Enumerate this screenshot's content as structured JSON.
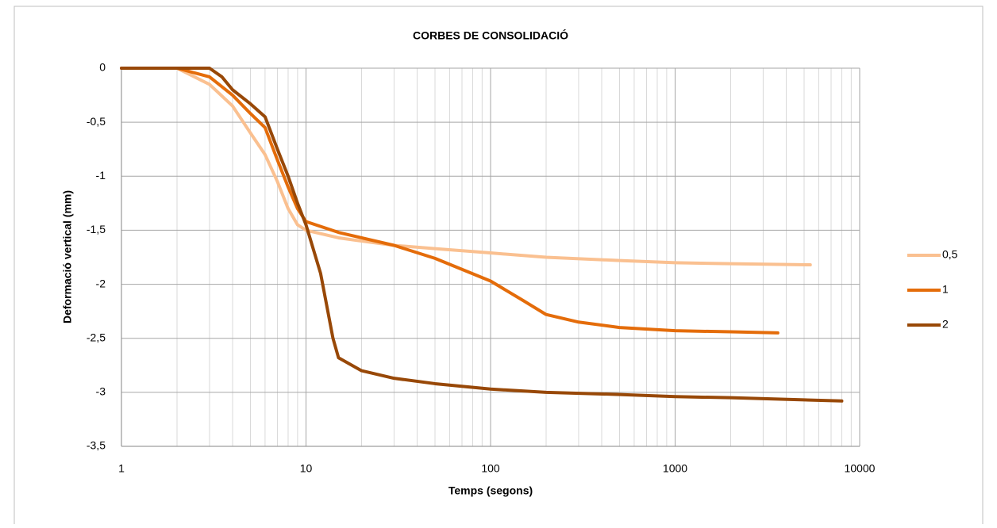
{
  "chart_data": {
    "type": "line",
    "title": "CORBES  DE  CONSOLIDACIÓ",
    "x_label": "Temps (segons)",
    "y_label": "Deformació vertical (mm)",
    "xscale": "log",
    "xlim": [
      1,
      10000
    ],
    "xticks": [
      1,
      10,
      100,
      1000,
      10000
    ],
    "ylim": [
      -3.5,
      0
    ],
    "yticks": [
      {
        "value": -3.5,
        "label": "-3,5"
      },
      -3,
      {
        "value": -2.5,
        "label": "-2,5"
      },
      -2,
      {
        "value": -1.5,
        "label": "-1,5"
      },
      -1,
      {
        "value": -0.5,
        "label": "-0,5"
      },
      0
    ],
    "grid": true,
    "minor_grid": true,
    "legend": "right",
    "series": [
      {
        "name": "0,5",
        "color": "#fac090",
        "x": [
          1,
          2,
          3,
          4,
          5,
          6,
          7,
          8,
          9,
          10,
          15,
          20,
          30,
          50,
          100,
          200,
          500,
          1000,
          2000,
          5400
        ],
        "values": [
          0,
          0,
          -0.15,
          -0.35,
          -0.6,
          -0.8,
          -1.05,
          -1.3,
          -1.45,
          -1.5,
          -1.57,
          -1.6,
          -1.64,
          -1.67,
          -1.71,
          -1.75,
          -1.78,
          -1.8,
          -1.81,
          -1.82
        ]
      },
      {
        "name": "1",
        "color": "#e46c0a",
        "x": [
          1,
          2,
          3,
          4,
          5,
          6,
          7,
          8,
          9,
          10,
          15,
          20,
          30,
          50,
          100,
          150,
          200,
          300,
          500,
          1000,
          2000,
          3600
        ],
        "values": [
          0,
          0,
          -0.08,
          -0.25,
          -0.42,
          -0.55,
          -0.85,
          -1.1,
          -1.3,
          -1.42,
          -1.52,
          -1.57,
          -1.64,
          -1.76,
          -1.97,
          -2.15,
          -2.28,
          -2.35,
          -2.4,
          -2.43,
          -2.44,
          -2.45
        ]
      },
      {
        "name": "2",
        "color": "#984807",
        "x": [
          1,
          2,
          3,
          3.5,
          4,
          5,
          6,
          7,
          8,
          9,
          10,
          12,
          14,
          15,
          20,
          30,
          50,
          100,
          200,
          500,
          1000,
          2000,
          5000,
          8000
        ],
        "values": [
          0,
          0,
          0,
          -0.08,
          -0.2,
          -0.33,
          -0.45,
          -0.75,
          -1.0,
          -1.25,
          -1.45,
          -1.9,
          -2.5,
          -2.68,
          -2.8,
          -2.87,
          -2.92,
          -2.97,
          -3.0,
          -3.02,
          -3.04,
          -3.05,
          -3.07,
          -3.08
        ]
      }
    ]
  }
}
